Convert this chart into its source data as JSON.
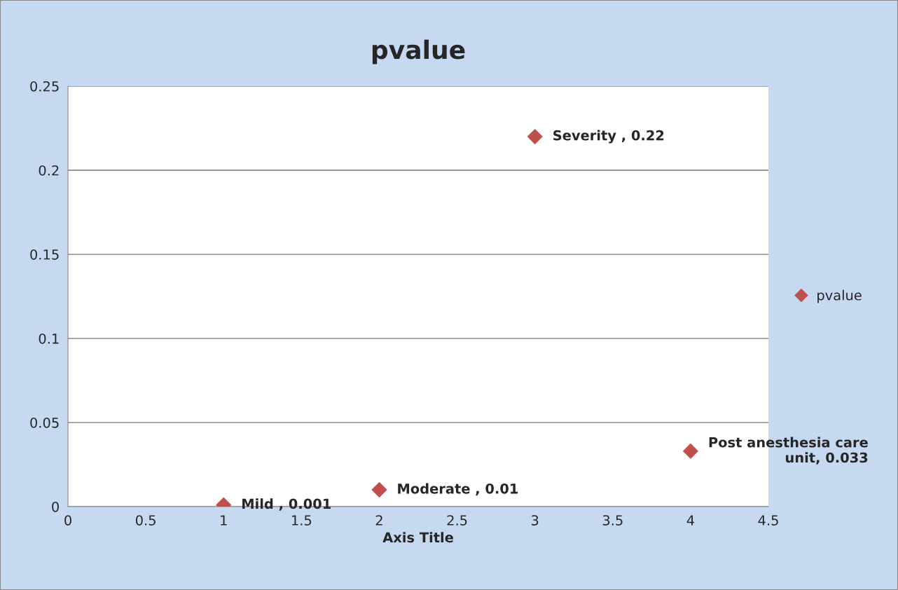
{
  "chart_data": {
    "type": "scatter",
    "title": "pvalue",
    "xlabel": "Axis Title",
    "x": [
      1,
      2,
      3,
      4
    ],
    "series": [
      {
        "name": "pvalue",
        "color": "#c0504d",
        "values": [
          0.001,
          0.01,
          0.22,
          0.033
        ]
      }
    ],
    "annotations": [
      {
        "text": "Mild , 0.001",
        "x": 1,
        "y": 0.001
      },
      {
        "text": "Moderate , 0.01",
        "x": 2,
        "y": 0.01
      },
      {
        "text": "Severity , 0.22",
        "x": 3,
        "y": 0.22
      },
      {
        "text": "Post anesthesia care\nunit, 0.033",
        "x": 4,
        "y": 0.033
      }
    ],
    "xlim": [
      0,
      4.5
    ],
    "xticks": [
      0,
      0.5,
      1,
      1.5,
      2,
      2.5,
      3,
      3.5,
      4,
      4.5
    ],
    "ylim": [
      0,
      0.25
    ],
    "yticks": [
      0,
      0.05,
      0.1,
      0.15,
      0.2,
      0.25
    ],
    "grid": "y",
    "legend": "right",
    "marker": "diamond"
  }
}
